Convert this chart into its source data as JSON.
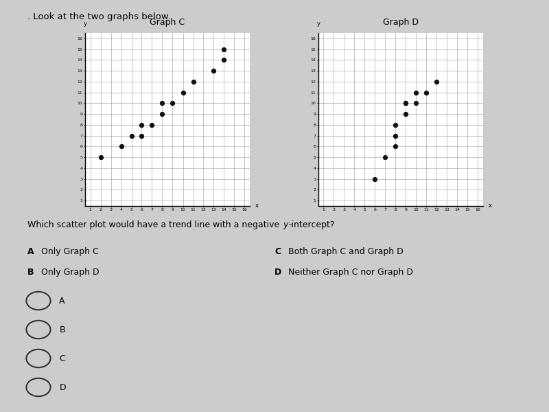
{
  "title_main": ". Look at the two graphs below.",
  "graph_c_title": "Graph C",
  "graph_d_title": "Graph D",
  "graph_c_points": [
    [
      2,
      5
    ],
    [
      4,
      6
    ],
    [
      5,
      7
    ],
    [
      6,
      7
    ],
    [
      6,
      8
    ],
    [
      7,
      8
    ],
    [
      8,
      9
    ],
    [
      8,
      10
    ],
    [
      9,
      10
    ],
    [
      10,
      11
    ],
    [
      11,
      12
    ],
    [
      13,
      13
    ],
    [
      14,
      14
    ],
    [
      14,
      15
    ]
  ],
  "graph_d_points": [
    [
      6,
      3
    ],
    [
      7,
      5
    ],
    [
      8,
      6
    ],
    [
      8,
      7
    ],
    [
      8,
      8
    ],
    [
      9,
      9
    ],
    [
      9,
      10
    ],
    [
      9,
      10
    ],
    [
      10,
      10
    ],
    [
      10,
      11
    ],
    [
      11,
      11
    ],
    [
      12,
      12
    ]
  ],
  "question_text": "Which scatter plot would have a trend line with a negative ",
  "question_italic": "y",
  "question_end": "-intercept?",
  "ans_A_bold": "A",
  "ans_A": "  Only Graph C",
  "ans_B_bold": "B",
  "ans_B": "  Only Graph D",
  "ans_C_bold": "C",
  "ans_C": "  Both Graph C and Graph D",
  "ans_D_bold": "D",
  "ans_D": "  Neither Graph C nor Graph D",
  "bg_color": "#cccccc",
  "dot_color": "#111111",
  "grid_color": "#999999",
  "axis_color": "#000000",
  "xticks": [
    1,
    2,
    3,
    4,
    5,
    6,
    7,
    8,
    9,
    10,
    11,
    12,
    13,
    14,
    15,
    16
  ],
  "yticks": [
    1,
    2,
    3,
    4,
    5,
    6,
    7,
    8,
    9,
    10,
    11,
    12,
    13,
    14,
    15,
    16
  ]
}
